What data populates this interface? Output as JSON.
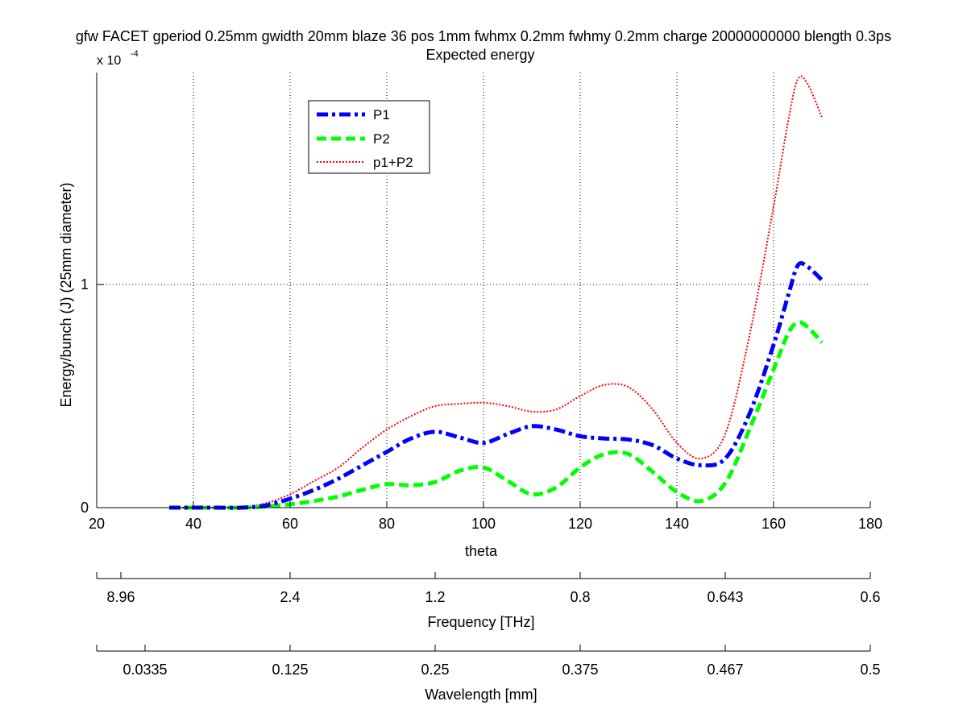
{
  "chart_data": {
    "type": "line",
    "title": "gfw FACET gperiod 0.25mm gwidth 20mm blaze 36 pos 1mm fwhmx 0.2mm fwhmy 0.2mm charge 20000000000 blength 0.3ps",
    "subtitle": "Expected energy",
    "xlabel": "theta",
    "ylabel": "Energy/bunch (J) (25mm diameter)",
    "y_exponent_label": "x 10",
    "y_exponent_power": "-4",
    "xlim": [
      20,
      180
    ],
    "ylim": [
      0,
      1.95
    ],
    "x_ticks": [
      20,
      40,
      60,
      80,
      100,
      120,
      140,
      160,
      180
    ],
    "x_tick_labels": [
      "20",
      "40",
      "60",
      "80",
      "100",
      "120",
      "140",
      "160",
      "180"
    ],
    "y_ticks": [
      0,
      1
    ],
    "y_tick_labels": [
      "0",
      "1"
    ],
    "grid": true,
    "legend_position": "top-left",
    "series": [
      {
        "name": "P1",
        "color": "#0000ff",
        "style": "dashdot",
        "x": [
          35,
          40,
          45,
          50,
          55,
          60,
          65,
          70,
          75,
          80,
          85,
          90,
          95,
          100,
          105,
          110,
          115,
          120,
          125,
          130,
          135,
          140,
          145,
          150,
          155,
          160,
          163,
          165,
          167,
          170
        ],
        "y": [
          0,
          0,
          0,
          0,
          0.01,
          0.04,
          0.08,
          0.13,
          0.19,
          0.25,
          0.31,
          0.34,
          0.315,
          0.29,
          0.33,
          0.365,
          0.35,
          0.32,
          0.31,
          0.305,
          0.28,
          0.22,
          0.19,
          0.22,
          0.42,
          0.73,
          0.95,
          1.085,
          1.08,
          1.02
        ]
      },
      {
        "name": "P2",
        "color": "#00ff00",
        "style": "dashed",
        "x": [
          35,
          40,
          45,
          50,
          55,
          60,
          65,
          70,
          75,
          80,
          85,
          90,
          95,
          100,
          105,
          110,
          115,
          120,
          125,
          130,
          135,
          140,
          145,
          150,
          155,
          160,
          163,
          165,
          167,
          170
        ],
        "y": [
          0,
          0,
          0,
          0,
          0.005,
          0.015,
          0.03,
          0.05,
          0.08,
          0.105,
          0.1,
          0.115,
          0.165,
          0.18,
          0.12,
          0.06,
          0.09,
          0.18,
          0.24,
          0.24,
          0.16,
          0.07,
          0.03,
          0.11,
          0.35,
          0.62,
          0.78,
          0.83,
          0.81,
          0.74
        ]
      },
      {
        "name": "p1+P2",
        "color": "#ff0000",
        "style": "dotted",
        "x": [
          35,
          40,
          45,
          50,
          55,
          60,
          65,
          70,
          75,
          80,
          85,
          90,
          95,
          100,
          105,
          110,
          115,
          120,
          125,
          130,
          135,
          140,
          145,
          150,
          155,
          160,
          163,
          165,
          167,
          170
        ],
        "y": [
          0,
          0,
          0,
          0,
          0.02,
          0.06,
          0.12,
          0.18,
          0.27,
          0.35,
          0.41,
          0.455,
          0.465,
          0.47,
          0.455,
          0.43,
          0.44,
          0.5,
          0.55,
          0.54,
          0.44,
          0.29,
          0.22,
          0.33,
          0.77,
          1.35,
          1.73,
          1.92,
          1.9,
          1.75
        ]
      }
    ],
    "secondary_axes": [
      {
        "label": "Frequency [THz]",
        "tick_theta": [
          25,
          60,
          90,
          120,
          150,
          180
        ],
        "tick_labels": [
          "8.96",
          "2.4",
          "1.2",
          "0.8",
          "0.643",
          "0.6"
        ]
      },
      {
        "label": "Wavelength [mm]",
        "tick_theta": [
          30,
          60,
          90,
          120,
          150,
          180
        ],
        "tick_labels": [
          "0.0335",
          "0.125",
          "0.25",
          "0.375",
          "0.467",
          "0.5"
        ]
      }
    ]
  }
}
